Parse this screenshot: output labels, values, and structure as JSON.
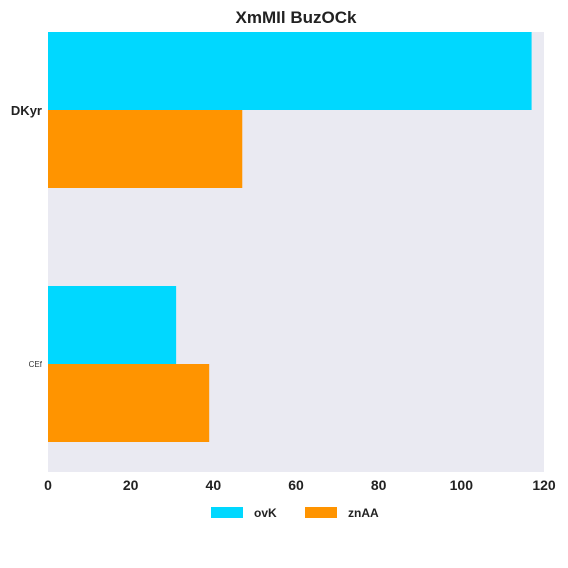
{
  "chart_data": {
    "type": "bar",
    "orientation": "horizontal",
    "title": "XmMIl BuzOCk",
    "categories": [
      "DKyr",
      "CEf"
    ],
    "series": [
      {
        "name": "ovK",
        "values": [
          117,
          31
        ],
        "color": "#00d8ff"
      },
      {
        "name": "znAA",
        "values": [
          47,
          39
        ],
        "color": "#ff9400"
      }
    ],
    "xlim": [
      0,
      120
    ],
    "xticks": [
      0,
      20,
      40,
      60,
      80,
      100,
      120
    ],
    "xlabel": "",
    "ylabel": "",
    "grid": false,
    "background": "#eaeaf2",
    "legend_position": "bottom-center"
  }
}
